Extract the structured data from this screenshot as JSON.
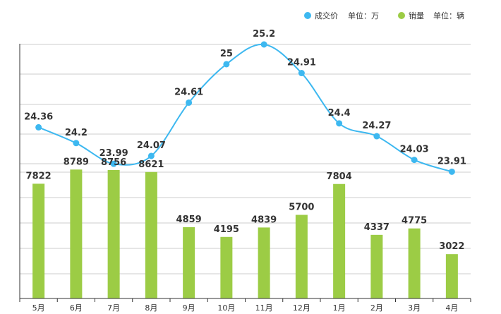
{
  "chart_data": {
    "type": "bar+line",
    "categories": [
      "5月",
      "6月",
      "7月",
      "8月",
      "9月",
      "10月",
      "11月",
      "12月",
      "1月",
      "2月",
      "3月",
      "4月"
    ],
    "series": [
      {
        "name": "成交价",
        "unit_label": "单位：万",
        "type": "line",
        "color": "#3db8f0",
        "values": [
          24.36,
          24.2,
          23.99,
          24.07,
          24.61,
          25,
          25.2,
          24.91,
          24.4,
          24.27,
          24.03,
          23.91
        ],
        "labels": [
          "24.36",
          "24.2",
          "23.99",
          "24.07",
          "24.61",
          "25",
          "25.2",
          "24.91",
          "24.4",
          "24.27",
          "24.03",
          "23.91"
        ]
      },
      {
        "name": "销量",
        "unit_label": "单位：辆",
        "type": "bar",
        "color": "#9ccc45",
        "values": [
          7822,
          8789,
          8756,
          8621,
          4859,
          4195,
          4839,
          5700,
          7804,
          4337,
          4775,
          3022
        ],
        "labels": [
          "7822",
          "8789",
          "8756",
          "8621",
          "4859",
          "4195",
          "4839",
          "5700",
          "7804",
          "4337",
          "4775",
          "3022"
        ]
      }
    ],
    "legend_position": "top-right",
    "grid": true,
    "axis_color": "#333333",
    "grid_color": "#cccccc"
  }
}
